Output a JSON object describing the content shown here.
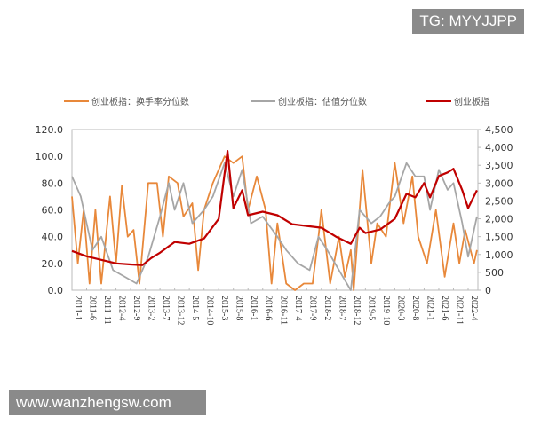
{
  "watermarks": {
    "top": "TG: MYYJJPP",
    "bottom": "www.wanzhengsw.com"
  },
  "chart_data": {
    "type": "line",
    "title": "",
    "ylim_left": [
      0,
      120
    ],
    "ylim_right": [
      0,
      4500
    ],
    "left_ticks": [
      "0.0",
      "20.0",
      "40.0",
      "60.0",
      "80.0",
      "100.0",
      "120.0"
    ],
    "right_ticks": [
      "0",
      "500",
      "1,000",
      "1,500",
      "2,000",
      "2,500",
      "3,000",
      "3,500",
      "4,000",
      "4,500"
    ],
    "x_ticks": [
      "2011-1",
      "2011-6",
      "2011-11",
      "2012-4",
      "2012-9",
      "2013-2",
      "2013-7",
      "2013-12",
      "2014-5",
      "2014-10",
      "2015-3",
      "2015-8",
      "2016-1",
      "2016-6",
      "2016-11",
      "2017-4",
      "2017-9",
      "2018-2",
      "2018-7",
      "2018-12",
      "2019-5",
      "2019-10",
      "2020-3",
      "2020-8",
      "2021-1",
      "2021-6",
      "2021-11",
      "2022-4"
    ],
    "grid": false,
    "legend_position": "top",
    "series": [
      {
        "name": "创业板指：换手率分位数",
        "axis": "left",
        "color": "#e8883a",
        "points": [
          [
            "2011-1",
            70
          ],
          [
            "2011-3",
            20
          ],
          [
            "2011-5",
            60
          ],
          [
            "2011-7",
            5
          ],
          [
            "2011-9",
            60
          ],
          [
            "2011-11",
            5
          ],
          [
            "2012-2",
            70
          ],
          [
            "2012-4",
            20
          ],
          [
            "2012-6",
            78
          ],
          [
            "2012-8",
            40
          ],
          [
            "2012-10",
            45
          ],
          [
            "2012-12",
            5
          ],
          [
            "2013-3",
            80
          ],
          [
            "2013-6",
            80
          ],
          [
            "2013-8",
            40
          ],
          [
            "2013-10",
            85
          ],
          [
            "2014-1",
            80
          ],
          [
            "2014-3",
            55
          ],
          [
            "2014-6",
            65
          ],
          [
            "2014-8",
            15
          ],
          [
            "2014-10",
            60
          ],
          [
            "2015-1",
            80
          ],
          [
            "2015-5",
            100
          ],
          [
            "2015-8",
            95
          ],
          [
            "2015-11",
            100
          ],
          [
            "2016-1",
            60
          ],
          [
            "2016-4",
            85
          ],
          [
            "2016-7",
            60
          ],
          [
            "2016-9",
            5
          ],
          [
            "2016-11",
            50
          ],
          [
            "2017-2",
            5
          ],
          [
            "2017-5",
            0
          ],
          [
            "2017-8",
            5
          ],
          [
            "2017-11",
            5
          ],
          [
            "2018-1",
            40
          ],
          [
            "2018-2",
            60
          ],
          [
            "2018-5",
            5
          ],
          [
            "2018-8",
            40
          ],
          [
            "2018-10",
            10
          ],
          [
            "2018-12",
            30
          ],
          [
            "2019-1",
            0
          ],
          [
            "2019-4",
            90
          ],
          [
            "2019-7",
            20
          ],
          [
            "2019-9",
            50
          ],
          [
            "2019-12",
            40
          ],
          [
            "2020-3",
            95
          ],
          [
            "2020-6",
            50
          ],
          [
            "2020-9",
            85
          ],
          [
            "2020-11",
            40
          ],
          [
            "2021-2",
            20
          ],
          [
            "2021-5",
            60
          ],
          [
            "2021-8",
            10
          ],
          [
            "2021-11",
            50
          ],
          [
            "2022-1",
            20
          ],
          [
            "2022-3",
            45
          ],
          [
            "2022-6",
            20
          ],
          [
            "2022-7",
            30
          ]
        ]
      },
      {
        "name": "创业板指：估值分位数",
        "axis": "left",
        "color": "#a6a6a6",
        "points": [
          [
            "2011-1",
            85
          ],
          [
            "2011-4",
            70
          ],
          [
            "2011-8",
            30
          ],
          [
            "2011-11",
            40
          ],
          [
            "2012-3",
            15
          ],
          [
            "2012-7",
            10
          ],
          [
            "2012-11",
            5
          ],
          [
            "2013-3",
            25
          ],
          [
            "2013-7",
            55
          ],
          [
            "2013-10",
            80
          ],
          [
            "2013-12",
            60
          ],
          [
            "2014-3",
            80
          ],
          [
            "2014-6",
            50
          ],
          [
            "2014-10",
            60
          ],
          [
            "2015-1",
            70
          ],
          [
            "2015-5",
            95
          ],
          [
            "2015-8",
            70
          ],
          [
            "2015-11",
            90
          ],
          [
            "2016-2",
            50
          ],
          [
            "2016-6",
            55
          ],
          [
            "2016-11",
            40
          ],
          [
            "2017-2",
            30
          ],
          [
            "2017-6",
            20
          ],
          [
            "2017-10",
            15
          ],
          [
            "2018-1",
            40
          ],
          [
            "2018-4",
            30
          ],
          [
            "2018-8",
            15
          ],
          [
            "2018-12",
            0
          ],
          [
            "2019-3",
            60
          ],
          [
            "2019-7",
            50
          ],
          [
            "2019-10",
            55
          ],
          [
            "2020-1",
            65
          ],
          [
            "2020-3",
            70
          ],
          [
            "2020-7",
            95
          ],
          [
            "2020-10",
            85
          ],
          [
            "2021-1",
            85
          ],
          [
            "2021-3",
            60
          ],
          [
            "2021-6",
            90
          ],
          [
            "2021-9",
            75
          ],
          [
            "2021-11",
            80
          ],
          [
            "2022-2",
            50
          ],
          [
            "2022-4",
            25
          ],
          [
            "2022-7",
            55
          ]
        ]
      },
      {
        "name": "创业板指",
        "axis": "right",
        "color": "#c00000",
        "points": [
          [
            "2011-1",
            1100
          ],
          [
            "2011-6",
            950
          ],
          [
            "2011-11",
            850
          ],
          [
            "2012-4",
            750
          ],
          [
            "2012-9",
            720
          ],
          [
            "2013-1",
            700
          ],
          [
            "2013-4",
            900
          ],
          [
            "2013-7",
            1050
          ],
          [
            "2013-12",
            1350
          ],
          [
            "2014-5",
            1300
          ],
          [
            "2014-10",
            1450
          ],
          [
            "2015-3",
            2000
          ],
          [
            "2015-6",
            3900
          ],
          [
            "2015-8",
            2300
          ],
          [
            "2015-11",
            2800
          ],
          [
            "2016-1",
            2100
          ],
          [
            "2016-6",
            2200
          ],
          [
            "2016-11",
            2100
          ],
          [
            "2017-4",
            1850
          ],
          [
            "2017-9",
            1800
          ],
          [
            "2018-2",
            1750
          ],
          [
            "2018-7",
            1500
          ],
          [
            "2018-12",
            1300
          ],
          [
            "2019-3",
            1750
          ],
          [
            "2019-5",
            1600
          ],
          [
            "2019-10",
            1700
          ],
          [
            "2020-3",
            2000
          ],
          [
            "2020-7",
            2700
          ],
          [
            "2020-10",
            2600
          ],
          [
            "2021-1",
            3000
          ],
          [
            "2021-3",
            2600
          ],
          [
            "2021-6",
            3200
          ],
          [
            "2021-9",
            3300
          ],
          [
            "2021-11",
            3400
          ],
          [
            "2022-2",
            2800
          ],
          [
            "2022-4",
            2300
          ],
          [
            "2022-7",
            2800
          ]
        ]
      }
    ]
  }
}
